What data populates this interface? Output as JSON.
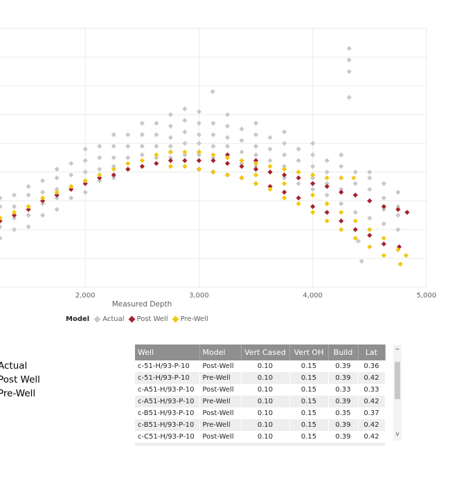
{
  "chart_data": {
    "type": "scatter",
    "xlabel": "Measured Depth",
    "ylabel": "",
    "xlim": [
      1250,
      5000
    ],
    "ylim": [
      0,
      9
    ],
    "x_ticks": [
      "2,000",
      "3,000",
      "4,000",
      "5,000"
    ],
    "x_tick_values": [
      2000,
      3000,
      4000,
      5000
    ],
    "grid": true,
    "legend": {
      "title": "Model",
      "position": "bottom-left"
    },
    "series": [
      {
        "name": "Actual",
        "color": "#c8c8c8",
        "points": [
          [
            1250,
            1.7
          ],
          [
            1250,
            2.1
          ],
          [
            1250,
            2.4
          ],
          [
            1250,
            2.8
          ],
          [
            1250,
            3.1
          ],
          [
            1375,
            2.0
          ],
          [
            1375,
            2.4
          ],
          [
            1375,
            2.8
          ],
          [
            1375,
            3.2
          ],
          [
            1500,
            2.1
          ],
          [
            1500,
            2.5
          ],
          [
            1500,
            2.8
          ],
          [
            1500,
            3.2
          ],
          [
            1500,
            3.5
          ],
          [
            1625,
            2.5
          ],
          [
            1625,
            2.9
          ],
          [
            1625,
            3.3
          ],
          [
            1625,
            3.7
          ],
          [
            1750,
            2.7
          ],
          [
            1750,
            3.1
          ],
          [
            1750,
            3.4
          ],
          [
            1750,
            3.8
          ],
          [
            1750,
            4.1
          ],
          [
            1875,
            3.1
          ],
          [
            1875,
            3.5
          ],
          [
            1875,
            3.9
          ],
          [
            1875,
            4.3
          ],
          [
            2000,
            3.3
          ],
          [
            2000,
            3.7
          ],
          [
            2000,
            4.0
          ],
          [
            2000,
            4.4
          ],
          [
            2000,
            4.8
          ],
          [
            2125,
            3.7
          ],
          [
            2125,
            4.1
          ],
          [
            2125,
            4.5
          ],
          [
            2125,
            4.9
          ],
          [
            2250,
            3.8
          ],
          [
            2250,
            4.2
          ],
          [
            2250,
            4.5
          ],
          [
            2250,
            4.9
          ],
          [
            2250,
            5.3
          ],
          [
            2375,
            4.1
          ],
          [
            2375,
            4.5
          ],
          [
            2375,
            4.9
          ],
          [
            2375,
            5.3
          ],
          [
            2500,
            4.2
          ],
          [
            2500,
            4.6
          ],
          [
            2500,
            4.9
          ],
          [
            2500,
            5.3
          ],
          [
            2500,
            5.7
          ],
          [
            2625,
            4.5
          ],
          [
            2625,
            4.9
          ],
          [
            2625,
            5.3
          ],
          [
            2625,
            5.7
          ],
          [
            2750,
            4.5
          ],
          [
            2750,
            4.9
          ],
          [
            2750,
            5.2
          ],
          [
            2750,
            5.6
          ],
          [
            2750,
            6.0
          ],
          [
            2875,
            4.6
          ],
          [
            2875,
            5.0
          ],
          [
            2875,
            5.4
          ],
          [
            2875,
            5.8
          ],
          [
            2875,
            6.2
          ],
          [
            3000,
            4.6
          ],
          [
            3000,
            5.0
          ],
          [
            3000,
            5.3
          ],
          [
            3000,
            5.7
          ],
          [
            3000,
            6.1
          ],
          [
            3125,
            4.5
          ],
          [
            3125,
            4.9
          ],
          [
            3125,
            5.3
          ],
          [
            3125,
            5.7
          ],
          [
            3120,
            6.8
          ],
          [
            3250,
            4.5
          ],
          [
            3250,
            4.9
          ],
          [
            3250,
            5.2
          ],
          [
            3250,
            5.6
          ],
          [
            3250,
            6.0
          ],
          [
            3375,
            4.3
          ],
          [
            3375,
            4.7
          ],
          [
            3375,
            5.1
          ],
          [
            3375,
            5.5
          ],
          [
            3500,
            4.2
          ],
          [
            3500,
            4.6
          ],
          [
            3500,
            4.9
          ],
          [
            3500,
            5.3
          ],
          [
            3500,
            5.7
          ],
          [
            3625,
            4.0
          ],
          [
            3625,
            4.4
          ],
          [
            3625,
            4.8
          ],
          [
            3625,
            5.2
          ],
          [
            3750,
            3.8
          ],
          [
            3750,
            4.2
          ],
          [
            3750,
            4.6
          ],
          [
            3750,
            5.0
          ],
          [
            3750,
            5.4
          ],
          [
            3875,
            3.6
          ],
          [
            3875,
            4.0
          ],
          [
            3875,
            4.4
          ],
          [
            3875,
            4.8
          ],
          [
            4000,
            3.4
          ],
          [
            4000,
            3.8
          ],
          [
            4000,
            4.2
          ],
          [
            4000,
            4.6
          ],
          [
            4000,
            5.0
          ],
          [
            4125,
            3.2
          ],
          [
            4125,
            3.6
          ],
          [
            4125,
            4.0
          ],
          [
            4125,
            4.4
          ],
          [
            4250,
            2.9
          ],
          [
            4250,
            3.4
          ],
          [
            4250,
            3.8
          ],
          [
            4250,
            4.2
          ],
          [
            4250,
            4.6
          ],
          [
            4375,
            2.6
          ],
          [
            4375,
            3.2
          ],
          [
            4375,
            3.6
          ],
          [
            4375,
            4.0
          ],
          [
            4500,
            2.4
          ],
          [
            4500,
            3.0
          ],
          [
            4500,
            3.4
          ],
          [
            4500,
            3.8
          ],
          [
            4500,
            4.0
          ],
          [
            4625,
            2.2
          ],
          [
            4625,
            2.7
          ],
          [
            4625,
            3.1
          ],
          [
            4625,
            3.6
          ],
          [
            4750,
            2.0
          ],
          [
            4750,
            2.5
          ],
          [
            4750,
            2.8
          ],
          [
            4750,
            3.3
          ],
          [
            4320,
            8.3
          ],
          [
            4320,
            7.9
          ],
          [
            4320,
            7.5
          ],
          [
            4320,
            6.6
          ],
          [
            4430,
            0.9
          ],
          [
            4400,
            1.6
          ]
        ]
      },
      {
        "name": "Post Well",
        "color": "#a6222c",
        "points": [
          [
            1250,
            2.3
          ],
          [
            1375,
            2.5
          ],
          [
            1500,
            2.7
          ],
          [
            1625,
            3.0
          ],
          [
            1750,
            3.2
          ],
          [
            1875,
            3.4
          ],
          [
            2000,
            3.6
          ],
          [
            2125,
            3.8
          ],
          [
            2250,
            3.9
          ],
          [
            2375,
            4.1
          ],
          [
            2500,
            4.2
          ],
          [
            2625,
            4.3
          ],
          [
            2750,
            4.4
          ],
          [
            2875,
            4.4
          ],
          [
            3000,
            4.4
          ],
          [
            3125,
            4.4
          ],
          [
            3250,
            4.3
          ],
          [
            3375,
            4.2
          ],
          [
            3500,
            4.1
          ],
          [
            3625,
            4.0
          ],
          [
            3750,
            3.9
          ],
          [
            3875,
            3.8
          ],
          [
            4000,
            3.6
          ],
          [
            4125,
            3.5
          ],
          [
            4250,
            3.3
          ],
          [
            4375,
            3.2
          ],
          [
            4500,
            3.0
          ],
          [
            4625,
            2.8
          ],
          [
            4750,
            2.7
          ],
          [
            4830,
            2.6
          ],
          [
            2750,
            4.7
          ],
          [
            3000,
            4.7
          ],
          [
            3250,
            4.6
          ],
          [
            3500,
            4.4
          ],
          [
            3000,
            4.1
          ],
          [
            3125,
            4.0
          ],
          [
            3250,
            3.9
          ],
          [
            3375,
            3.8
          ],
          [
            3500,
            3.6
          ],
          [
            3625,
            3.5
          ],
          [
            3750,
            3.3
          ],
          [
            3875,
            3.1
          ],
          [
            4000,
            2.8
          ],
          [
            4125,
            2.6
          ],
          [
            4250,
            2.3
          ],
          [
            4375,
            2.0
          ],
          [
            4500,
            1.8
          ],
          [
            4625,
            1.5
          ],
          [
            4760,
            1.4
          ]
        ]
      },
      {
        "name": "Pre-Well",
        "color": "#f2c80f",
        "points": [
          [
            1250,
            2.4
          ],
          [
            1375,
            2.6
          ],
          [
            1500,
            2.8
          ],
          [
            1625,
            3.1
          ],
          [
            1750,
            3.3
          ],
          [
            1875,
            3.5
          ],
          [
            2000,
            3.7
          ],
          [
            2125,
            3.9
          ],
          [
            2250,
            4.1
          ],
          [
            2375,
            4.3
          ],
          [
            2500,
            4.4
          ],
          [
            2625,
            4.6
          ],
          [
            2750,
            4.7
          ],
          [
            2875,
            4.7
          ],
          [
            3000,
            4.7
          ],
          [
            3125,
            4.6
          ],
          [
            3250,
            4.5
          ],
          [
            3375,
            4.4
          ],
          [
            3500,
            4.3
          ],
          [
            3625,
            4.2
          ],
          [
            3750,
            4.1
          ],
          [
            3875,
            4.0
          ],
          [
            4000,
            3.9
          ],
          [
            4125,
            3.8
          ],
          [
            4250,
            3.8
          ],
          [
            4360,
            3.8
          ],
          [
            2750,
            4.2
          ],
          [
            2875,
            4.2
          ],
          [
            3000,
            4.1
          ],
          [
            3125,
            4.0
          ],
          [
            3250,
            3.9
          ],
          [
            3375,
            3.8
          ],
          [
            3500,
            3.6
          ],
          [
            3625,
            3.4
          ],
          [
            3750,
            3.1
          ],
          [
            3875,
            2.9
          ],
          [
            4000,
            2.6
          ],
          [
            4125,
            2.3
          ],
          [
            4250,
            2.0
          ],
          [
            4375,
            1.7
          ],
          [
            4500,
            1.4
          ],
          [
            4625,
            1.1
          ],
          [
            4770,
            0.8
          ],
          [
            3500,
            3.9
          ],
          [
            3750,
            3.6
          ],
          [
            4000,
            3.2
          ],
          [
            4125,
            2.9
          ],
          [
            4250,
            2.6
          ],
          [
            4375,
            2.3
          ],
          [
            4500,
            2.0
          ],
          [
            4625,
            1.7
          ],
          [
            4750,
            1.3
          ],
          [
            4820,
            1.1
          ]
        ]
      }
    ]
  },
  "side_legend": [
    "Actual",
    "Post Well",
    "Pre-Well"
  ],
  "table": {
    "columns": [
      "Well",
      "Model",
      "Vert Cased",
      "Vert OH",
      "Build",
      "Lat"
    ],
    "rows": [
      [
        "c-51-H/93-P-10",
        "Post-Well",
        "0.10",
        "0.15",
        "0.39",
        "0.36"
      ],
      [
        "c-51-H/93-P-10",
        "Pre-Well",
        "0.10",
        "0.15",
        "0.39",
        "0.42"
      ],
      [
        "c-A51-H/93-P-10",
        "Post-Well",
        "0.10",
        "0.15",
        "0.33",
        "0.33"
      ],
      [
        "c-A51-H/93-P-10",
        "Pre-Well",
        "0.10",
        "0.15",
        "0.39",
        "0.42"
      ],
      [
        "c-B51-H/93-P-10",
        "Post-Well",
        "0.10",
        "0.15",
        "0.35",
        "0.37"
      ],
      [
        "c-B51-H/93-P-10",
        "Pre-Well",
        "0.10",
        "0.15",
        "0.39",
        "0.42"
      ],
      [
        "c-C51-H/93-P-10",
        "Post-Well",
        "0.10",
        "0.15",
        "0.39",
        "0.42"
      ]
    ]
  },
  "scrollbar": {
    "up": "^",
    "down": "v"
  }
}
